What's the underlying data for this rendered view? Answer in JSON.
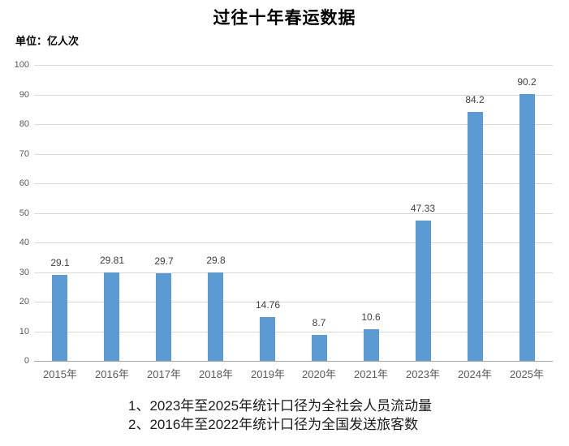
{
  "chart_data": {
    "type": "bar",
    "title": "过往十年春运数据",
    "unit_label": "单位：亿人次",
    "categories": [
      "2015年",
      "2016年",
      "2017年",
      "2018年",
      "2019年",
      "2020年",
      "2021年",
      "2023年",
      "2024年",
      "2025年"
    ],
    "values": [
      29.1,
      29.81,
      29.7,
      29.8,
      14.76,
      8.7,
      10.6,
      47.33,
      84.2,
      90.2
    ],
    "data_labels": [
      "29.1",
      "29.81",
      "29.7",
      "29.8",
      "14.76",
      "8.7",
      "10.6",
      "47.33",
      "84.2",
      "90.2"
    ],
    "xlabel": "",
    "ylabel": "",
    "ylim": [
      0,
      100
    ],
    "ytick_step": 10,
    "grid": true,
    "legend": "none",
    "colors": {
      "bar": "#5b9bd5",
      "gridline": "#d9d9d9",
      "axis_line": "#a6a6a6",
      "tick_label": "#595959",
      "category_label": "#595959",
      "data_label": "#404040"
    },
    "footnotes": [
      "1、2023年至2025年统计口径为全社会人员流动量",
      "2、2016年至2022年统计口径为全国发送旅客数"
    ]
  }
}
